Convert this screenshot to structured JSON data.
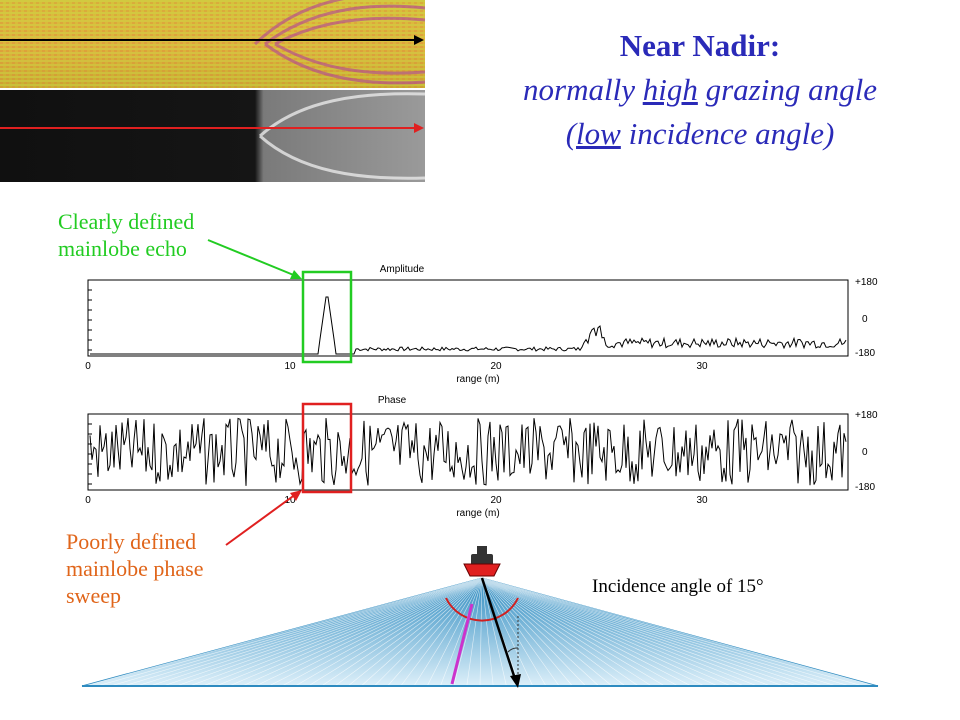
{
  "title": "Near Nadir:",
  "subtitle": {
    "line1_pre": "normally ",
    "line1_u": "high",
    "line1_post": " grazing angle",
    "line2_pre": "(",
    "line2_u": "low",
    "line2_post": " incidence angle)"
  },
  "annotations": {
    "echo_line1": "Clearly defined",
    "echo_line2": "mainlobe echo",
    "phase_line1": "Poorly defined",
    "phase_line2": "mainlobe phase",
    "phase_line3": "sweep",
    "incidence": "Incidence angle of 15°"
  },
  "amplitude_plot": {
    "title": "Amplitude",
    "xlabel": "range (m)",
    "x_ticks": [
      "0",
      "10",
      "20",
      "30"
    ],
    "right_ticks": [
      "+180",
      "0",
      "-180"
    ]
  },
  "phase_plot": {
    "title": "Phase",
    "xlabel": "range (m)",
    "x_ticks": [
      "0",
      "10",
      "20",
      "30"
    ],
    "right_ticks": [
      "+180",
      "0",
      "-180"
    ]
  },
  "colors": {
    "title": "#2a2ab8",
    "highlight_green": "#22cc22",
    "highlight_red": "#e02020",
    "annotation_orange": "#e0651a",
    "swath": "#2e8bc0"
  }
}
